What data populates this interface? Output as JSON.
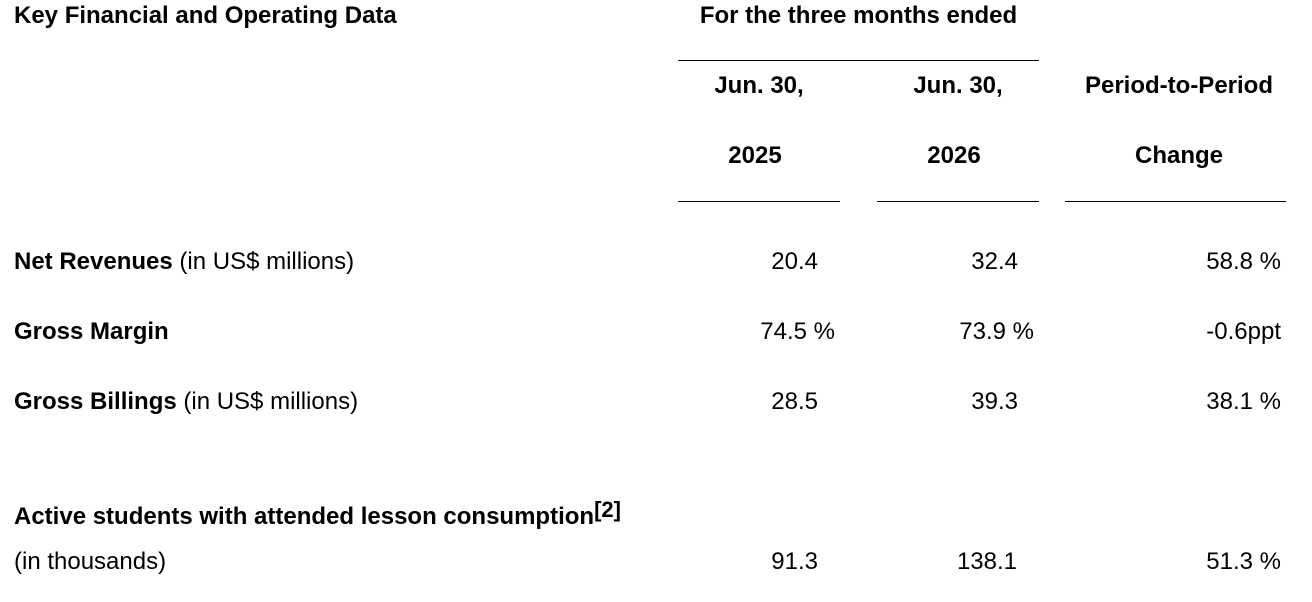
{
  "table": {
    "title": "Key Financial and Operating Data",
    "period_header": "For the three months ended",
    "columns": [
      {
        "line1": "Jun. 30,",
        "line2": "2025"
      },
      {
        "line1": "Jun. 30,",
        "line2": "2026"
      },
      {
        "line1": "Period-to-Period",
        "line2": "Change"
      }
    ],
    "rows": [
      {
        "label_bold": "Net Revenues",
        "label_note": "(in US$ millions)",
        "v2025": "20.4",
        "v2026": "32.4",
        "change": "58.8 %"
      },
      {
        "label_bold": "Gross Margin",
        "label_note": "",
        "v2025": "74.5 %",
        "v2026": "73.9 %",
        "change": "-0.6ppt"
      },
      {
        "label_bold": "Gross Billings",
        "label_note": "(in US$ millions)",
        "v2025": "28.5",
        "v2026": "39.3",
        "change": "38.1 %"
      },
      {
        "label_bold": "Active students with attended lesson consumption",
        "footnote": "[2]",
        "label_note": "(in thousands)",
        "v2025": "91.3",
        "v2026": "138.1",
        "change": "51.3 %"
      }
    ]
  }
}
